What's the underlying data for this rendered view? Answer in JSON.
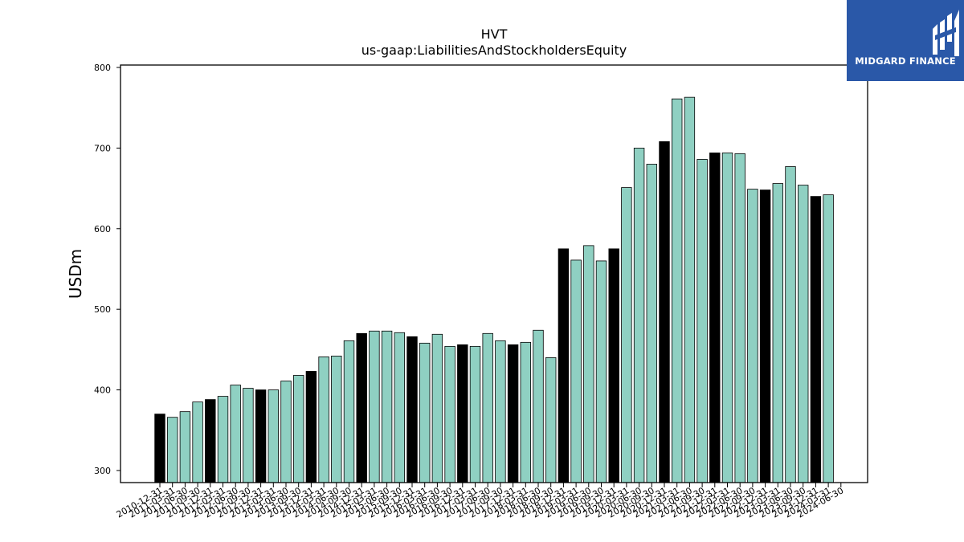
{
  "logo": {
    "text": "MIDGARD FINANCE",
    "background": "#2a58a8"
  },
  "chart_data": {
    "type": "bar",
    "title": "HVT",
    "subtitle": "us-gaap:LiabilitiesAndStockholdersEquity",
    "xlabel": "",
    "ylabel": "USDm",
    "ylim": [
      285,
      803
    ],
    "yticks": [
      300,
      400,
      500,
      600,
      700,
      800
    ],
    "grid": false,
    "colors": {
      "year_end": "#000000",
      "interim": "#8fd0c2"
    },
    "categories": [
      "2010-12-31",
      "2011-03-31",
      "2011-06-30",
      "2011-09-30",
      "2011-12-31",
      "2012-03-31",
      "2012-06-30",
      "2012-09-30",
      "2012-12-31",
      "2013-03-31",
      "2013-06-30",
      "2013-09-30",
      "2013-12-31",
      "2014-03-31",
      "2014-06-30",
      "2014-09-30",
      "2014-12-31",
      "2015-03-31",
      "2015-06-30",
      "2015-09-30",
      "2015-12-31",
      "2016-03-31",
      "2016-06-30",
      "2016-09-30",
      "2016-12-31",
      "2017-03-31",
      "2017-06-30",
      "2017-09-30",
      "2017-12-31",
      "2018-03-31",
      "2018-06-30",
      "2018-09-30",
      "2018-12-31",
      "2019-03-31",
      "2019-06-30",
      "2019-09-30",
      "2019-12-31",
      "2020-03-31",
      "2020-06-30",
      "2020-09-30",
      "2020-12-31",
      "2021-03-31",
      "2021-06-30",
      "2021-09-30",
      "2021-12-31",
      "2022-03-31",
      "2022-06-30",
      "2022-09-30",
      "2022-12-31",
      "2023-03-31",
      "2023-06-30",
      "2023-09-30",
      "2023-12-31",
      "2024-03-31",
      "2024-06-30"
    ],
    "values": [
      370,
      366,
      373,
      385,
      388,
      392,
      406,
      402,
      400,
      400,
      411,
      418,
      423,
      441,
      442,
      461,
      470,
      473,
      473,
      471,
      466,
      458,
      469,
      454,
      456,
      454,
      470,
      461,
      456,
      459,
      474,
      440,
      575,
      561,
      579,
      560,
      575,
      651,
      700,
      680,
      708,
      761,
      763,
      686,
      694,
      694,
      693,
      649,
      648,
      656,
      677,
      654,
      640,
      642,
      null
    ],
    "year_end": [
      true,
      false,
      false,
      false,
      true,
      false,
      false,
      false,
      true,
      false,
      false,
      false,
      true,
      false,
      false,
      false,
      true,
      false,
      false,
      false,
      true,
      false,
      false,
      false,
      true,
      false,
      false,
      false,
      true,
      false,
      false,
      false,
      true,
      false,
      false,
      false,
      true,
      false,
      false,
      false,
      true,
      false,
      false,
      false,
      true,
      false,
      false,
      false,
      true,
      false,
      false,
      false,
      true,
      false,
      false
    ]
  }
}
